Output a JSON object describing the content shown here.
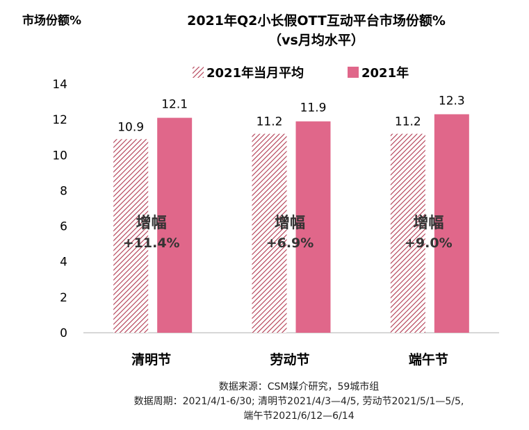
{
  "chart_data": {
    "type": "bar",
    "title": "2021年Q2小长假OTT互动平台市场份额%",
    "subtitle": "（vs月均水平）",
    "ylabel": "市场份额%",
    "xlabel": "",
    "ylim": [
      0,
      14
    ],
    "yticks": [
      0,
      2,
      4,
      6,
      8,
      10,
      12,
      14
    ],
    "grid": false,
    "legend_position": "top-center",
    "categories": [
      "清明节",
      "劳动节",
      "端午节"
    ],
    "series": [
      {
        "name": "2021年当月平均",
        "values": [
          10.9,
          11.2,
          11.2
        ],
        "color": "#b0384f",
        "pattern": "diagonal-hatch"
      },
      {
        "name": "2021年",
        "values": [
          12.1,
          11.9,
          12.3
        ],
        "color": "#e0678a",
        "pattern": "solid"
      }
    ],
    "annotations": [
      {
        "category": "清明节",
        "label": "增幅",
        "value": "+11.4%"
      },
      {
        "category": "劳动节",
        "label": "增幅",
        "value": "+6.9%"
      },
      {
        "category": "端午节",
        "label": "增幅",
        "value": "+9.0%"
      }
    ]
  },
  "source_lines": [
    "数据来源：CSM媒介研究，59城市组",
    "数据周期：2021/4/1-6/30; 清明节2021/4/3—4/5, 劳动节2021/5/1—5/5,",
    "端午节2021/6/12—6/14"
  ]
}
